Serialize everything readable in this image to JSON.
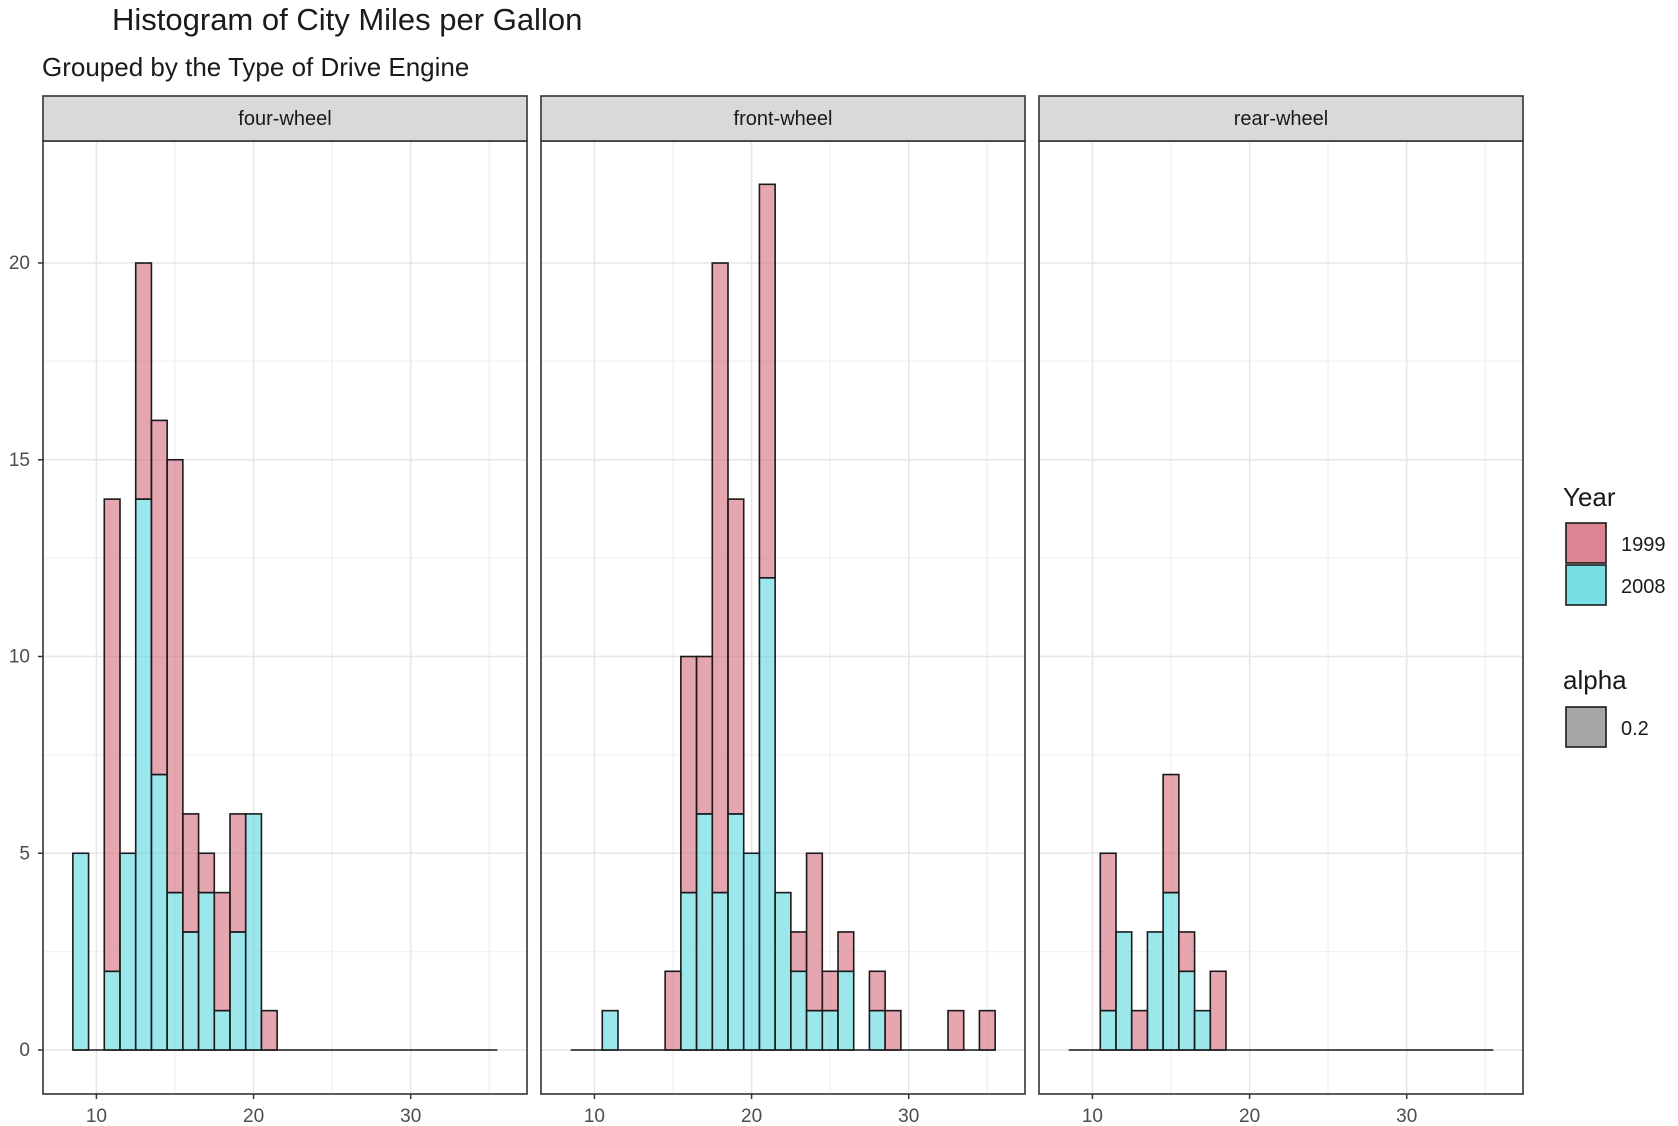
{
  "header": {
    "title": "Histogram of City Miles per Gallon",
    "subtitle": "Grouped by the Type of Drive Engine"
  },
  "chart_data": {
    "type": "bar",
    "stacked": true,
    "title": "Histogram of City Miles per Gallon",
    "subtitle": "Grouped by the Type of Drive Engine",
    "xlabel": "",
    "ylabel": "",
    "xlim": [
      8,
      36
    ],
    "ylim": [
      0,
      22
    ],
    "x_ticks": [
      10,
      20,
      30
    ],
    "y_ticks": [
      0,
      5,
      10,
      15,
      20
    ],
    "bin_width": 1,
    "grid": true,
    "colors": {
      "1999": "#d5707f",
      "2008": "#5fd9e0",
      "outline": "#1a1a1a",
      "strip_bg": "#d9d9d9"
    },
    "panels": [
      {
        "label": "four-wheel",
        "bins": [
          9,
          10,
          11,
          12,
          13,
          14,
          15,
          16,
          17,
          18,
          19,
          20,
          21
        ],
        "series": [
          {
            "name": "2008",
            "values": [
              5,
              0,
              2,
              5,
              14,
              7,
              4,
              3,
              4,
              1,
              3,
              6,
              0
            ]
          },
          {
            "name": "1999",
            "values": [
              0,
              0,
              12,
              0,
              6,
              9,
              11,
              3,
              1,
              3,
              3,
              0,
              1
            ]
          }
        ]
      },
      {
        "label": "front-wheel",
        "bins": [
          11,
          15,
          16,
          17,
          18,
          19,
          20,
          21,
          22,
          23,
          24,
          25,
          26,
          28,
          29,
          33,
          35
        ],
        "series": [
          {
            "name": "2008",
            "values": [
              1,
              0,
              4,
              6,
              4,
              6,
              5,
              12,
              4,
              2,
              1,
              1,
              2,
              1,
              0,
              0,
              0
            ]
          },
          {
            "name": "1999",
            "values": [
              0,
              2,
              6,
              4,
              16,
              8,
              0,
              10,
              0,
              1,
              4,
              1,
              1,
              1,
              1,
              1,
              1
            ]
          }
        ]
      },
      {
        "label": "rear-wheel",
        "bins": [
          11,
          12,
          13,
          14,
          15,
          16,
          17,
          18
        ],
        "series": [
          {
            "name": "2008",
            "values": [
              1,
              3,
              0,
              3,
              4,
              2,
              1,
              0
            ]
          },
          {
            "name": "1999",
            "values": [
              4,
              0,
              1,
              0,
              3,
              1,
              0,
              2
            ]
          }
        ]
      }
    ],
    "legend": {
      "position": "right",
      "fill_title": "Year",
      "fill_entries": [
        "1999",
        "2008"
      ],
      "alpha_title": "alpha",
      "alpha_entries": [
        "0.2"
      ],
      "alpha_color": "#a6a6a6"
    }
  }
}
